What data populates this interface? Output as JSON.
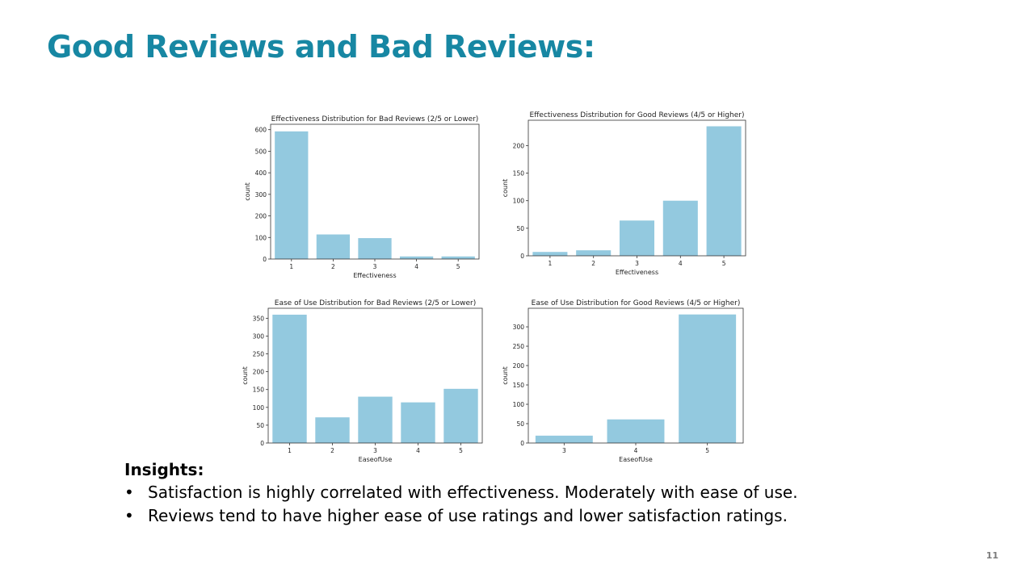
{
  "slide": {
    "title": "Good Reviews and Bad Reviews:",
    "page_number": "11"
  },
  "insights": {
    "heading": "Insights:",
    "bullets": [
      "Satisfaction is highly correlated with effectiveness. Moderately with ease of use.",
      "Reviews tend to have higher ease of use ratings and lower satisfaction ratings."
    ]
  },
  "colors": {
    "title": "#1787a3",
    "bar": "#93c9df"
  },
  "chart_data": [
    {
      "type": "bar",
      "title": "Effectiveness Distribution for Bad Reviews (2/5 or Lower)",
      "xlabel": "Effectiveness",
      "ylabel": "count",
      "categories": [
        "1",
        "2",
        "3",
        "4",
        "5"
      ],
      "values": [
        592,
        114,
        97,
        12,
        12
      ],
      "ylim": [
        0,
        625
      ],
      "yticks": [
        0,
        100,
        200,
        300,
        400,
        500,
        600
      ],
      "grid": false
    },
    {
      "type": "bar",
      "title": "Effectiveness Distribution for Good Reviews (4/5 or Higher)",
      "xlabel": "Effectiveness",
      "ylabel": "count",
      "categories": [
        "1",
        "2",
        "3",
        "4",
        "5"
      ],
      "values": [
        7,
        10,
        64,
        100,
        235
      ],
      "ylim": [
        0,
        246
      ],
      "yticks": [
        0,
        50,
        100,
        150,
        200
      ],
      "grid": false
    },
    {
      "type": "bar",
      "title": "Ease of Use Distribution for Bad Reviews (2/5 or Lower)",
      "xlabel": "EaseofUse",
      "ylabel": "count",
      "categories": [
        "1",
        "2",
        "3",
        "4",
        "5"
      ],
      "values": [
        360,
        72,
        130,
        114,
        152
      ],
      "ylim": [
        0,
        378
      ],
      "yticks": [
        0,
        50,
        100,
        150,
        200,
        250,
        300,
        350
      ],
      "grid": false
    },
    {
      "type": "bar",
      "title": "Ease of Use Distribution for Good Reviews (4/5 or Higher)",
      "xlabel": "EaseofUse",
      "ylabel": "count",
      "categories": [
        "3",
        "4",
        "5"
      ],
      "values": [
        19,
        61,
        332
      ],
      "ylim": [
        0,
        348
      ],
      "yticks": [
        0,
        50,
        100,
        150,
        200,
        250,
        300
      ],
      "grid": false
    }
  ]
}
